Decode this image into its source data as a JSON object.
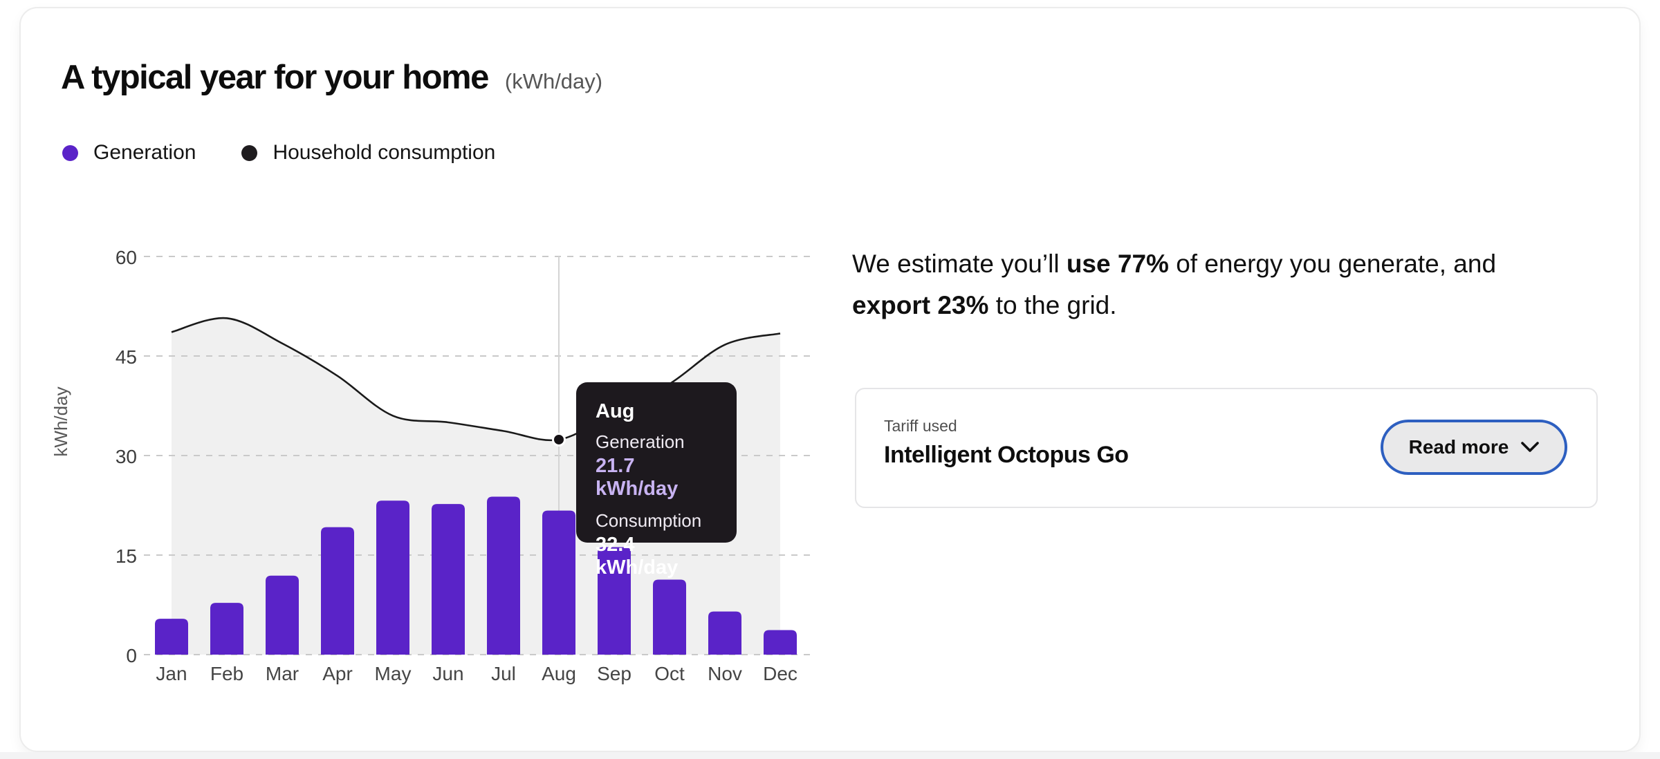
{
  "header": {
    "title": "A typical year for your home",
    "unit": "(kWh/day)"
  },
  "legend": {
    "generation": {
      "label": "Generation",
      "color": "#5a23c8"
    },
    "consumption": {
      "label": "Household consumption",
      "color": "#1f1c1f"
    }
  },
  "chart_data": {
    "type": "bar+line",
    "title": "A typical year for your home",
    "unit": "(kWh/day)",
    "ylabel": "kWh/day",
    "categories": [
      "Jan",
      "Feb",
      "Mar",
      "Apr",
      "May",
      "Jun",
      "Jul",
      "Aug",
      "Sep",
      "Oct",
      "Nov",
      "Dec"
    ],
    "series": [
      {
        "name": "Generation",
        "type": "bar",
        "color": "#5a23c8",
        "values": [
          5.4,
          7.8,
          11.9,
          19.2,
          23.2,
          22.7,
          23.8,
          21.7,
          16.2,
          11.3,
          6.5,
          3.7
        ]
      },
      {
        "name": "Household consumption",
        "type": "line",
        "color": "#1a1a1a",
        "values": [
          48.6,
          50.7,
          46.9,
          42.0,
          36.0,
          35.0,
          33.7,
          32.4,
          36.5,
          40.8,
          46.7,
          48.4
        ]
      }
    ],
    "yticks": [
      0,
      15,
      30,
      45,
      60
    ],
    "ylim": [
      0,
      63
    ],
    "grid": "dashed-horizontal",
    "area_fill": "#f0f0f0",
    "gridline_color": "#c9c9c9",
    "highlight_color": "#d4d4d4",
    "highlighted_index": 7
  },
  "tooltip": {
    "month": "Aug",
    "generation_label": "Generation",
    "generation_value": "21.7 kWh/day",
    "consumption_label": "Consumption",
    "consumption_value": "32.4 kWh/day"
  },
  "estimate": {
    "part1": "We estimate you’ll ",
    "bold1": "use 77%",
    "part2": " of energy you generate, and ",
    "bold2": "export 23%",
    "part3": " to the grid."
  },
  "tariff": {
    "label": "Tariff used",
    "name": "Intelligent Octopus Go"
  },
  "actions": {
    "read_more": "Read more"
  },
  "colors": {
    "bar_purple": "#5a23c8",
    "tooltip_bg": "#1d191e",
    "tooltip_purple": "#c8b3f2",
    "button_border_blue": "#2d5fc0",
    "button_bg": "#e9e9ea"
  }
}
